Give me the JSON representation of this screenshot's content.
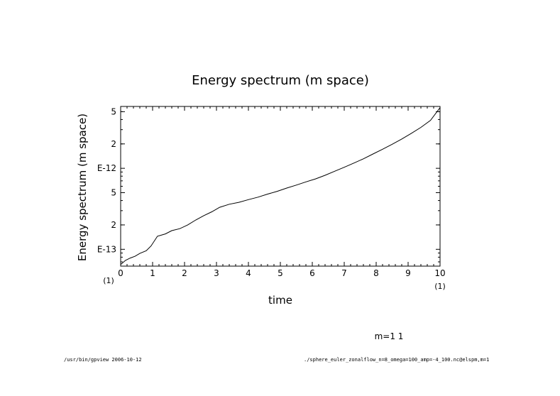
{
  "chart_data": {
    "type": "line",
    "title": "Energy spectrum (m space)",
    "xlabel": "time",
    "ylabel": "Energy spectrum (m space)",
    "x_scale_note": "(1)",
    "x_ticks": [
      0,
      1,
      2,
      3,
      4,
      5,
      6,
      7,
      8,
      9,
      10
    ],
    "x_tick_labels": [
      "0",
      "1",
      "2",
      "3",
      "4",
      "5",
      "6",
      "7",
      "8",
      "9",
      "10"
    ],
    "xlim": [
      0,
      10
    ],
    "y_scale": "log",
    "ylim": [
      6.2e-14,
      5.8e-12
    ],
    "y_major_ticks": [
      {
        "value": 5e-12,
        "label": "5"
      },
      {
        "value": 2e-12,
        "label": "2"
      },
      {
        "value": 1e-12,
        "label": "E-12"
      },
      {
        "value": 5e-13,
        "label": "5"
      },
      {
        "value": 2e-13,
        "label": "2"
      },
      {
        "value": 1e-13,
        "label": "E-13"
      }
    ],
    "legend": "m=1 1",
    "series": [
      {
        "name": "m=1",
        "x": [
          0,
          0.15,
          0.3,
          0.45,
          0.6,
          0.8,
          0.95,
          1.15,
          1.4,
          1.6,
          1.85,
          2.1,
          2.35,
          2.6,
          2.85,
          3.1,
          3.4,
          3.7,
          4.0,
          4.3,
          4.6,
          4.9,
          5.2,
          5.5,
          5.8,
          6.1,
          6.4,
          6.7,
          7.0,
          7.3,
          7.6,
          7.9,
          8.2,
          8.5,
          8.8,
          9.1,
          9.4,
          9.7,
          10.0
        ],
        "y": [
          6.5e-14,
          7.3e-14,
          7.8e-14,
          8.2e-14,
          8.9e-14,
          9.6e-14,
          1.1e-13,
          1.45e-13,
          1.55e-13,
          1.7e-13,
          1.8e-13,
          2e-13,
          2.3e-13,
          2.6e-13,
          2.9e-13,
          3.3e-13,
          3.6e-13,
          3.8e-13,
          4.1e-13,
          4.4e-13,
          4.8e-13,
          5.2e-13,
          5.7e-13,
          6.2e-13,
          6.8e-13,
          7.4e-13,
          8.2e-13,
          9.2e-13,
          1.03e-12,
          1.16e-12,
          1.31e-12,
          1.5e-12,
          1.72e-12,
          1.98e-12,
          2.3e-12,
          2.7e-12,
          3.2e-12,
          3.9e-12,
          5.6e-12
        ]
      }
    ]
  },
  "footer": {
    "left": "/usr/bin/gpview  2006-10-12",
    "right": "./sphere_euler_zonalflow_n=8_omega=100_amp=-4_100.nc@elspm,m=1"
  }
}
